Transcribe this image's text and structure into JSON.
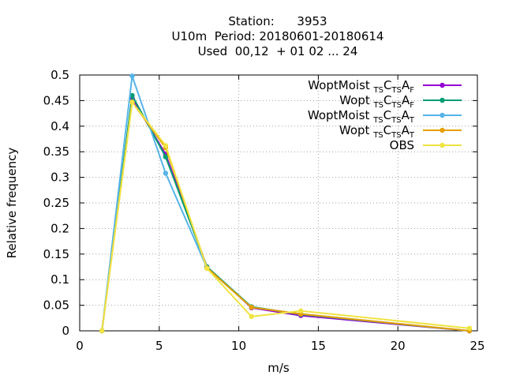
{
  "chart_data": {
    "type": "line",
    "title": [
      "Station:      3953",
      "U10m  Period: 20180601-20180614",
      "Used  00,12  + 01 02 ... 24"
    ],
    "xlabel": "m/s",
    "ylabel": "Relative frequency",
    "xlim": [
      0,
      25
    ],
    "ylim": [
      0,
      0.5
    ],
    "xticks": [
      0,
      5,
      10,
      15,
      20,
      25
    ],
    "yticks": [
      0,
      0.05,
      0.1,
      0.15,
      0.2,
      0.25,
      0.3,
      0.35,
      0.4,
      0.45,
      0.5
    ],
    "grid": true,
    "legend_position": "top-right",
    "series": [
      {
        "legend": [
          {
            "t": "WoptMoist "
          },
          {
            "t": "TS",
            "sub": true
          },
          {
            "t": "C"
          },
          {
            "t": "TS",
            "sub": true
          },
          {
            "t": "A"
          },
          {
            "t": "F",
            "sub": true
          }
        ],
        "color": "#9400d3",
        "x": [
          1.4,
          3.3,
          5.4,
          8.0,
          10.8,
          13.9,
          24.5
        ],
        "y": [
          0.0,
          0.455,
          0.345,
          0.125,
          0.045,
          0.03,
          0.0
        ]
      },
      {
        "legend": [
          {
            "t": "Wopt "
          },
          {
            "t": "TS",
            "sub": true
          },
          {
            "t": "C"
          },
          {
            "t": "TS",
            "sub": true
          },
          {
            "t": "A"
          },
          {
            "t": "F",
            "sub": true
          }
        ],
        "color": "#009e73",
        "x": [
          1.4,
          3.3,
          5.4,
          8.0,
          10.8,
          13.9,
          24.5
        ],
        "y": [
          0.0,
          0.46,
          0.34,
          0.125,
          0.047,
          0.032,
          0.0
        ]
      },
      {
        "legend": [
          {
            "t": "WoptMoist "
          },
          {
            "t": "TS",
            "sub": true
          },
          {
            "t": "C"
          },
          {
            "t": "TS",
            "sub": true
          },
          {
            "t": "A"
          },
          {
            "t": "T",
            "sub": true
          }
        ],
        "color": "#56b4e9",
        "x": [
          1.4,
          3.3,
          5.4,
          8.0,
          10.8,
          13.9,
          24.5
        ],
        "y": [
          0.0,
          0.498,
          0.308,
          0.123,
          0.046,
          0.033,
          0.0
        ]
      },
      {
        "legend": [
          {
            "t": "Wopt "
          },
          {
            "t": "TS",
            "sub": true
          },
          {
            "t": "C"
          },
          {
            "t": "TS",
            "sub": true
          },
          {
            "t": "A"
          },
          {
            "t": "T",
            "sub": true
          }
        ],
        "color": "#e69f00",
        "x": [
          1.4,
          3.3,
          5.4,
          8.0,
          10.8,
          13.9,
          24.5
        ],
        "y": [
          0.0,
          0.447,
          0.358,
          0.123,
          0.046,
          0.033,
          0.0
        ]
      },
      {
        "legend": [
          {
            "t": "OBS"
          }
        ],
        "color": "#f0e442",
        "x": [
          1.4,
          3.3,
          5.4,
          8.0,
          10.8,
          13.9,
          24.5
        ],
        "y": [
          0.0,
          0.447,
          0.362,
          0.122,
          0.028,
          0.039,
          0.005
        ]
      }
    ]
  }
}
